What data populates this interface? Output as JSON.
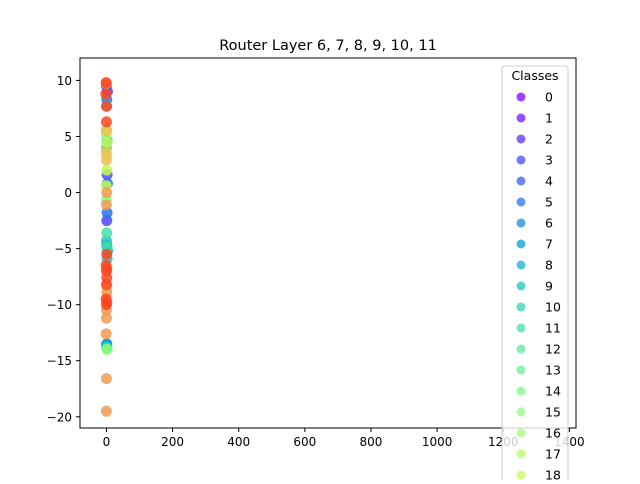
{
  "chart_data": {
    "type": "scatter",
    "title": "Router Layer 6, 7, 8, 9, 10, 11",
    "xlabel": "",
    "ylabel": "",
    "xlim": [
      -80,
      1420
    ],
    "ylim": [
      -21,
      12
    ],
    "x_ticks": [
      0,
      200,
      400,
      600,
      800,
      1000,
      1200,
      1400
    ],
    "x_tick_labels": [
      "0",
      "200",
      "400",
      "600",
      "800",
      "1000",
      "1200",
      "1400"
    ],
    "y_ticks": [
      10,
      5,
      0,
      -5,
      -10,
      -15,
      -20
    ],
    "y_tick_labels": [
      "10",
      "5",
      "0",
      "−5",
      "−10",
      "−15",
      "−20"
    ],
    "grid": false,
    "legend": {
      "title": "Classes",
      "placement": "right (clipped at bottom)",
      "entries": [
        {
          "label": "0",
          "color": "#8000ff"
        },
        {
          "label": "1",
          "color": "#6e18fe"
        },
        {
          "label": "2",
          "color": "#5c30fc"
        },
        {
          "label": "3",
          "color": "#4a48f8"
        },
        {
          "label": "4",
          "color": "#3860f2"
        },
        {
          "label": "5",
          "color": "#2676ea"
        },
        {
          "label": "6",
          "color": "#148ce1"
        },
        {
          "label": "7",
          "color": "#02a2d6"
        },
        {
          "label": "8",
          "color": "#10b4cb"
        },
        {
          "label": "9",
          "color": "#22c4c0"
        },
        {
          "label": "10",
          "color": "#34d4b4"
        },
        {
          "label": "11",
          "color": "#46e0a8"
        },
        {
          "label": "12",
          "color": "#58ea9c"
        },
        {
          "label": "13",
          "color": "#6af290"
        },
        {
          "label": "14",
          "color": "#7cf884"
        },
        {
          "label": "15",
          "color": "#8efc78"
        },
        {
          "label": "16",
          "color": "#a0fe6c"
        },
        {
          "label": "17",
          "color": "#b2fe60"
        },
        {
          "label": "18",
          "color": "#c4fa54"
        }
      ]
    },
    "series": [
      {
        "color": "#4a48f8",
        "points": [
          [
            0,
            9.5
          ],
          [
            2,
            1.6
          ],
          [
            1,
            -2.5
          ],
          [
            3,
            9.0
          ]
        ]
      },
      {
        "color": "#2676ea",
        "points": [
          [
            1,
            8.3
          ],
          [
            0,
            5.6
          ],
          [
            2,
            -1.8
          ],
          [
            3,
            0.8
          ],
          [
            1,
            -13.5
          ]
        ]
      },
      {
        "color": "#02a2d6",
        "points": [
          [
            2,
            4.6
          ],
          [
            1,
            -4.7
          ],
          [
            0,
            -13.6
          ],
          [
            3,
            -5.2
          ]
        ]
      },
      {
        "color": "#22c4c0",
        "points": [
          [
            1,
            7.7
          ],
          [
            0,
            -4.3
          ],
          [
            2,
            -5.9
          ],
          [
            1,
            -13.8
          ]
        ]
      },
      {
        "color": "#46e0a8",
        "points": [
          [
            0,
            4.0
          ],
          [
            1,
            -3.6
          ],
          [
            1,
            -13.9
          ],
          [
            2,
            -4.9
          ]
        ]
      },
      {
        "color": "#8efc78",
        "points": [
          [
            -1,
            5.2
          ],
          [
            0,
            -0.6
          ],
          [
            1,
            3.3
          ],
          [
            2,
            -14.0
          ]
        ]
      },
      {
        "color": "#c4fa54",
        "points": [
          [
            0,
            5.6
          ],
          [
            1,
            2.0
          ],
          [
            -1,
            0.6
          ],
          [
            2,
            4.5
          ]
        ]
      },
      {
        "color": "#f0c050",
        "points": [
          [
            0,
            2.9
          ],
          [
            1,
            5.5
          ],
          [
            -1,
            3.6
          ],
          [
            1,
            -8.4
          ]
        ]
      },
      {
        "color": "#f09a54",
        "points": [
          [
            0,
            9.7
          ],
          [
            1,
            -8.9
          ],
          [
            0,
            -11.2
          ],
          [
            -1,
            -12.6
          ],
          [
            0,
            -16.6
          ],
          [
            0,
            -19.5
          ],
          [
            1,
            0.0
          ],
          [
            0,
            -10.5
          ],
          [
            0,
            -1.1
          ]
        ]
      },
      {
        "color": "#ff4522",
        "points": [
          [
            -2,
            8.8
          ],
          [
            0,
            6.3
          ],
          [
            0,
            7.7
          ],
          [
            1,
            -5.5
          ],
          [
            -1,
            -6.5
          ],
          [
            0,
            -7.0
          ],
          [
            1,
            -7.6
          ],
          [
            0,
            -8.2
          ],
          [
            -1,
            -9.5
          ],
          [
            1,
            -9.8
          ],
          [
            0,
            -10.0
          ],
          [
            -1,
            9.8
          ],
          [
            1,
            -6.8
          ]
        ]
      }
    ]
  }
}
